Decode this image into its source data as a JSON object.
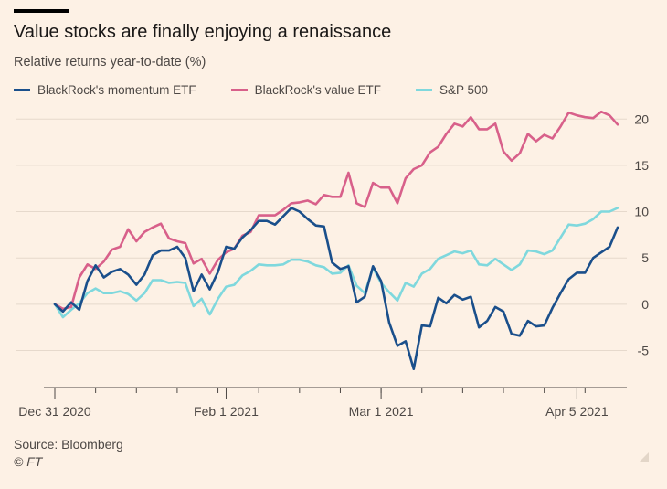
{
  "header": {
    "title": "Value stocks are finally enjoying a renaissance",
    "subtitle": "Relative returns year-to-date (%)"
  },
  "footer": {
    "source": "Source: Bloomberg",
    "credit": "© FT"
  },
  "colors": {
    "background": "#fdf1e5",
    "momentum": "#1a4f8b",
    "value": "#d8608a",
    "sp500": "#7fd8dd",
    "grid": "#e6d9cc",
    "axis": "#4d4845"
  },
  "chart_data": {
    "type": "line",
    "title": "Value stocks are finally enjoying a renaissance",
    "ylabel": "Relative returns year-to-date (%)",
    "xlabel": "",
    "ylim": [
      -9,
      22
    ],
    "yticks": [
      -5,
      0,
      5,
      10,
      15,
      20
    ],
    "ytick_labels": [
      "-5",
      "0",
      "5",
      "10",
      "15",
      "20"
    ],
    "xticks": [
      {
        "index": 0,
        "label": "Dec 31 2020"
      },
      {
        "index": 21,
        "label": "Feb 1 2021"
      },
      {
        "index": 40,
        "label": "Mar 1 2021"
      },
      {
        "index": 64,
        "label": "Apr 5 2021"
      }
    ],
    "grid": true,
    "legend_position": "top",
    "series": [
      {
        "name": "BlackRock's momentum ETF",
        "color": "#1a4f8b",
        "values": [
          0,
          -0.8,
          0.2,
          -0.6,
          2.5,
          4.2,
          2.9,
          3.5,
          3.8,
          3.2,
          2.1,
          3.2,
          5.3,
          5.8,
          5.8,
          6.2,
          5.0,
          1.4,
          3.2,
          1.6,
          3.5,
          6.2,
          6.0,
          7.2,
          8.0,
          9.0,
          9.0,
          8.6,
          9.5,
          10.4,
          10.0,
          9.2,
          8.5,
          8.4,
          4.5,
          3.8,
          4.1,
          0.2,
          0.8,
          4.1,
          2.5,
          -2.0,
          -4.5,
          -4.0,
          -7.0,
          -2.3,
          -2.4,
          0.7,
          0.1,
          1.0,
          0.5,
          0.8,
          -2.5,
          -1.8,
          -0.3,
          -0.8,
          -3.2,
          -3.4,
          -1.8,
          -2.4,
          -2.3,
          -0.4,
          1.2,
          2.7,
          3.4,
          3.4,
          5.0,
          5.6,
          6.2,
          8.3
        ]
      },
      {
        "name": "BlackRock's value ETF",
        "color": "#d8608a",
        "values": [
          0,
          -0.5,
          -0.3,
          2.9,
          4.3,
          3.8,
          4.6,
          5.9,
          6.2,
          8.1,
          6.8,
          7.8,
          8.3,
          8.7,
          7.1,
          6.8,
          6.6,
          4.4,
          4.9,
          3.3,
          4.8,
          5.6,
          6.0,
          7.4,
          7.8,
          9.6,
          9.6,
          9.6,
          10.2,
          10.9,
          11.0,
          11.2,
          10.8,
          11.8,
          11.6,
          11.6,
          14.2,
          10.9,
          10.5,
          13.1,
          12.6,
          12.6,
          10.9,
          13.6,
          14.6,
          15.0,
          16.4,
          17.0,
          18.4,
          19.5,
          19.2,
          20.2,
          18.9,
          18.9,
          19.5,
          16.5,
          15.5,
          16.3,
          18.4,
          17.6,
          18.3,
          17.9,
          19.2,
          20.7,
          20.4,
          20.2,
          20.1,
          20.8,
          20.4,
          19.4
        ]
      },
      {
        "name": "S&P 500",
        "color": "#7fd8dd",
        "values": [
          0,
          -1.4,
          -0.6,
          0.1,
          1.2,
          1.7,
          1.2,
          1.2,
          1.4,
          1.1,
          0.4,
          1.2,
          2.6,
          2.6,
          2.3,
          2.4,
          2.3,
          -0.2,
          0.6,
          -1.1,
          0.6,
          1.9,
          2.1,
          3.1,
          3.6,
          4.3,
          4.2,
          4.2,
          4.3,
          4.8,
          4.8,
          4.6,
          4.2,
          4.0,
          3.3,
          3.4,
          4.2,
          2.0,
          1.2,
          3.9,
          2.3,
          1.3,
          0.4,
          2.3,
          1.9,
          3.3,
          3.8,
          4.9,
          5.3,
          5.7,
          5.5,
          5.8,
          4.3,
          4.2,
          4.9,
          4.3,
          3.7,
          4.3,
          5.8,
          5.7,
          5.4,
          5.8,
          7.2,
          8.6,
          8.5,
          8.7,
          9.2,
          10.0,
          10.0,
          10.4
        ]
      }
    ]
  }
}
